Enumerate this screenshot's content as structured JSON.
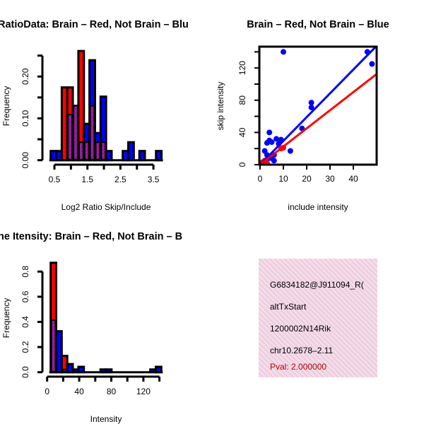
{
  "chart_data": [
    {
      "type": "bar",
      "subtype": "overlaid-histogram",
      "title": "RatioData: Brain – Red, Not Brain – Blu",
      "xlabel": "Log2 Ratio Skip/Include",
      "ylabel": "Frequency",
      "xlim": [
        0.386,
        3.75
      ],
      "ylim": [
        0,
        0.25
      ],
      "bin_start": 0.386,
      "bin_width": 0.168,
      "xticks": [
        0.5,
        1.0,
        1.5,
        2.0,
        2.5,
        3.0,
        3.5
      ],
      "xtick_labels": [
        "0.5",
        "",
        "1.5",
        "",
        "2.5",
        "",
        "3.5"
      ],
      "yticks": [
        0,
        0.05,
        0.1,
        0.15,
        0.2,
        0.25
      ],
      "ytick_labels": [
        "0.00",
        "",
        "0.10",
        "",
        "0.20",
        ""
      ],
      "series": [
        {
          "name": "Brain",
          "color": "#ff0000",
          "values": [
            0,
            0,
            0.174,
            0.174,
            0.13,
            0.261,
            0.043,
            0.13,
            0.043,
            0.043,
            0,
            0,
            0,
            0,
            0,
            0,
            0,
            0,
            0,
            0
          ]
        },
        {
          "name": "Not Brain",
          "color": "#0000ff",
          "values": [
            0.022,
            0.022,
            0,
            0.109,
            0.13,
            0.043,
            0.087,
            0.239,
            0.065,
            0.152,
            0.022,
            0,
            0,
            0.022,
            0.043,
            0,
            0.022,
            0,
            0,
            0.022
          ]
        }
      ],
      "overlap_color": "#a020a0"
    },
    {
      "type": "scatter",
      "title": "Brain – Red, Not Brain – Blue",
      "xlabel": "include intensity",
      "ylabel": "skip intensity",
      "xlim": [
        0,
        50
      ],
      "ylim": [
        0,
        146
      ],
      "xticks": [
        0,
        10,
        20,
        30,
        40
      ],
      "yticks": [
        0,
        20,
        40,
        60,
        80,
        100,
        120,
        140
      ],
      "ytick_labels": [
        "0",
        "",
        "40",
        "",
        "80",
        "",
        "120",
        ""
      ],
      "series": [
        {
          "name": "Not Brain",
          "color": "#0000ff",
          "fit_slope": 2.95,
          "points": [
            [
              10,
              140
            ],
            [
              46,
              140
            ],
            [
              48,
              125
            ],
            [
              22,
              77
            ],
            [
              22,
              71
            ],
            [
              18,
              45
            ],
            [
              4,
              40
            ],
            [
              4,
              30
            ],
            [
              3,
              27
            ],
            [
              5,
              28
            ],
            [
              7,
              32
            ],
            [
              9,
              31
            ],
            [
              8,
              26
            ],
            [
              13,
              17
            ],
            [
              2,
              17
            ],
            [
              3,
              12
            ],
            [
              4,
              10
            ],
            [
              6,
              12
            ],
            [
              5,
              8
            ],
            [
              2,
              5
            ],
            [
              6,
              5
            ],
            [
              1,
              2
            ],
            [
              3,
              6
            ]
          ]
        },
        {
          "name": "Brain",
          "color": "#ff0000",
          "fit_slope": 2.25,
          "points": [
            [
              9,
              20
            ],
            [
              10,
              21
            ],
            [
              2,
              5
            ],
            [
              1,
              3
            ],
            [
              3,
              2
            ]
          ]
        }
      ]
    },
    {
      "type": "bar",
      "subtype": "overlaid-histogram",
      "title": "ne Itensity: Brain – Red, Not Brain – B",
      "xlabel": "Intensity",
      "ylabel": "Frequency",
      "xlim": [
        0,
        142
      ],
      "ylim": [
        0,
        0.87
      ],
      "bin_start": 4.4,
      "bin_width": 6.9,
      "xticks": [
        0,
        20,
        40,
        60,
        80,
        100,
        120,
        140
      ],
      "xtick_labels": [
        "0",
        "",
        "40",
        "",
        "80",
        "",
        "120",
        ""
      ],
      "yticks": [
        0,
        0.2,
        0.4,
        0.6,
        0.8
      ],
      "ytick_labels": [
        "0.0",
        "0.2",
        "0.4",
        "0.6",
        "0.8"
      ],
      "series": [
        {
          "name": "Brain",
          "color": "#ff0000",
          "values": [
            0.87,
            0,
            0.13,
            0,
            0,
            0,
            0,
            0,
            0,
            0,
            0,
            0,
            0,
            0,
            0,
            0,
            0,
            0,
            0,
            0
          ]
        },
        {
          "name": "Not Brain",
          "color": "#0000ff",
          "values": [
            0.413,
            0.326,
            0.022,
            0.065,
            0.022,
            0.043,
            0,
            0,
            0,
            0.022,
            0.022,
            0,
            0,
            0,
            0,
            0,
            0,
            0,
            0.022,
            0.043
          ]
        }
      ],
      "overlap_color": "#a020a0"
    }
  ],
  "info_box": {
    "lines": [
      "G6834182@J911094_R(",
      "altTxStart",
      "1200002N14Rik",
      "chr10.2678–2.11"
    ],
    "pval": "Pval: 2.000000",
    "pval_color": "#b00000",
    "background": "#f8d8f0"
  }
}
